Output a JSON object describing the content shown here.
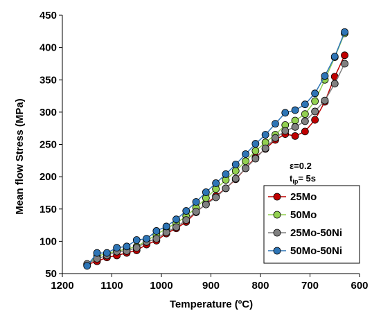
{
  "chart_data": {
    "type": "line",
    "title": "",
    "xlabel": "Temperature (ºC)",
    "ylabel": "Mean flow Stress (MPa)",
    "xlim": [
      1200,
      600
    ],
    "ylim": [
      50,
      450
    ],
    "x_reversed": true,
    "xticks": [
      1200,
      1100,
      1000,
      900,
      800,
      700,
      600
    ],
    "yticks": [
      50,
      100,
      150,
      200,
      250,
      300,
      350,
      400,
      450
    ],
    "grid": false,
    "legend_position": "bottom-right",
    "annotation": {
      "line1": "ε=0.2",
      "line2_main": "t",
      "line2_sub": "ip",
      "line2_rest": "= 5s"
    },
    "x": [
      1150,
      1130,
      1110,
      1090,
      1070,
      1050,
      1030,
      1010,
      990,
      970,
      950,
      930,
      910,
      890,
      870,
      850,
      830,
      810,
      790,
      770,
      750,
      730,
      710,
      690,
      670,
      650,
      630
    ],
    "series": [
      {
        "name": "25Mo",
        "color": "#c00000",
        "values": [
          64,
          69,
          75,
          78,
          82,
          86,
          95,
          101,
          112,
          120,
          130,
          145,
          158,
          170,
          182,
          196,
          213,
          230,
          243,
          257,
          266,
          263,
          270,
          288,
          316,
          355,
          388
        ]
      },
      {
        "name": "50Mo",
        "color": "#92d050",
        "values": [
          63,
          77,
          81,
          85,
          88,
          92,
          101,
          110,
          120,
          128,
          139,
          152,
          167,
          181,
          195,
          209,
          224,
          240,
          253,
          265,
          280,
          287,
          297,
          317,
          350,
          385,
          422
        ]
      },
      {
        "name": "25Mo-50Ni",
        "color": "#808080",
        "values": [
          65,
          73,
          78,
          84,
          85,
          90,
          99,
          104,
          114,
          122,
          133,
          146,
          157,
          168,
          182,
          197,
          213,
          228,
          244,
          260,
          271,
          277,
          286,
          301,
          318,
          344,
          375
        ]
      },
      {
        "name": "50Mo-50Ni",
        "color": "#2e75b6",
        "values": [
          62,
          82,
          82,
          90,
          92,
          102,
          104,
          116,
          123,
          134,
          147,
          161,
          176,
          190,
          204,
          219,
          235,
          251,
          265,
          282,
          299,
          303,
          312,
          329,
          356,
          386,
          424
        ]
      }
    ]
  }
}
